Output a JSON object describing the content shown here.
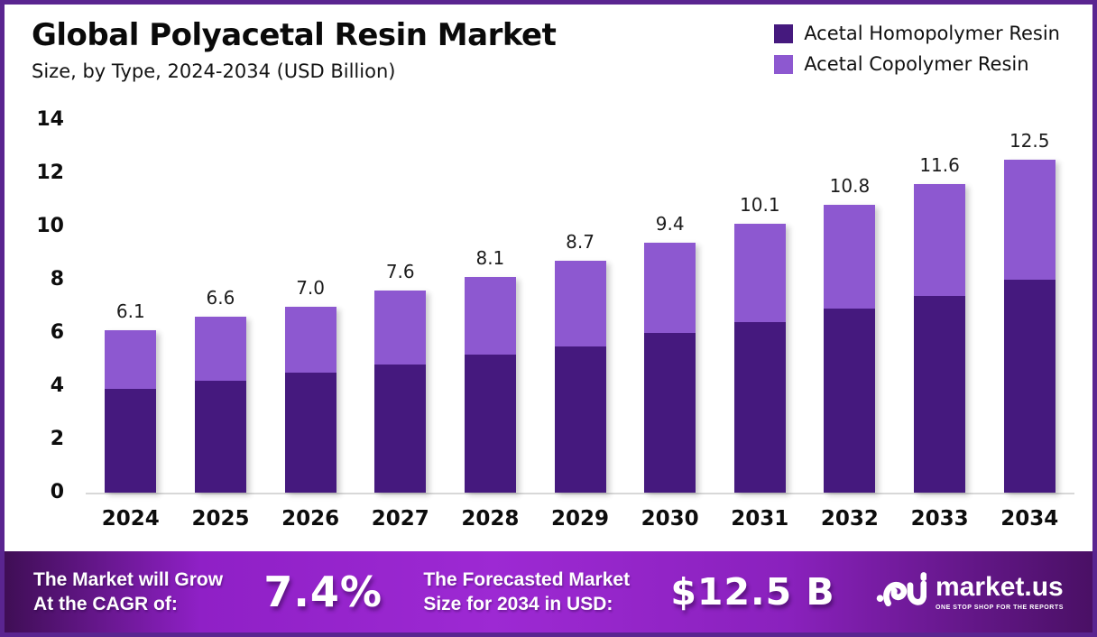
{
  "frame": {
    "border_color": "#5A2590",
    "background": "#FFFFFF"
  },
  "header": {
    "title": "Global Polyacetal Resin Market",
    "subtitle": "Size, by Type, 2024-2034 (USD Billion)"
  },
  "legend": [
    {
      "label": "Acetal Homopolymer Resin",
      "color": "#45197E"
    },
    {
      "label": "Acetal Copolymer Resin",
      "color": "#8D58D0"
    }
  ],
  "chart_data": {
    "type": "bar",
    "stacked": true,
    "title": "Global Polyacetal Resin Market",
    "subtitle": "Size, by Type, 2024-2034 (USD Billion)",
    "unit": "USD Billion",
    "categories": [
      "2024",
      "2025",
      "2026",
      "2027",
      "2028",
      "2029",
      "2030",
      "2031",
      "2032",
      "2033",
      "2034"
    ],
    "series": [
      {
        "name": "Acetal Homopolymer Resin",
        "color": "#45197E",
        "values": [
          3.9,
          4.2,
          4.5,
          4.8,
          5.2,
          5.5,
          6.0,
          6.4,
          6.9,
          7.4,
          8.0
        ]
      },
      {
        "name": "Acetal Copolymer Resin",
        "color": "#8D58D0",
        "values": [
          2.2,
          2.4,
          2.5,
          2.8,
          2.9,
          3.2,
          3.4,
          3.7,
          3.9,
          4.2,
          4.5
        ]
      }
    ],
    "totals": [
      "6.1",
      "6.6",
      "7.0",
      "7.6",
      "8.1",
      "8.7",
      "9.4",
      "10.1",
      "10.8",
      "11.6",
      "12.5"
    ],
    "ylim": [
      0,
      14
    ],
    "yticks": [
      0,
      2,
      4,
      6,
      8,
      10,
      12,
      14
    ],
    "grid": false,
    "legend_position": "top-right",
    "baseline_color": "#d8d8d8"
  },
  "footer": {
    "growth_label_line1": "The Market will Grow",
    "growth_label_line2": "At the CAGR of:",
    "cagr_value": "7.4%",
    "forecast_label_line1": "The Forecasted Market",
    "forecast_label_line2": "Size for 2034 in USD:",
    "forecast_value": "$12.5 B",
    "brand": {
      "name": "market.us",
      "tagline": "ONE STOP SHOP FOR THE REPORTS"
    },
    "gradient": [
      "#3F0E55",
      "#8F20C6",
      "#9D29D3",
      "#8A21BD",
      "#4A1065"
    ]
  }
}
